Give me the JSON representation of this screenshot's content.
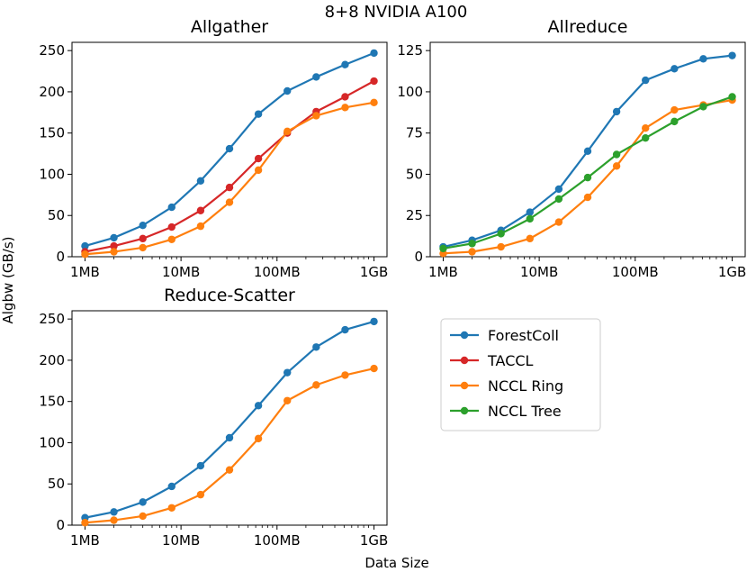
{
  "figure": {
    "title": "8+8 NVIDIA A100",
    "xlabel": "Data Size",
    "ylabel": "Algbw (GB/s)"
  },
  "legend": {
    "placement": "right of bottom-left panel",
    "entries": [
      {
        "name": "ForestColl",
        "color": "#1f77b4"
      },
      {
        "name": "TACCL",
        "color": "#d62728"
      },
      {
        "name": "NCCL Ring",
        "color": "#ff7f0e"
      },
      {
        "name": "NCCL Tree",
        "color": "#2ca02c"
      }
    ]
  },
  "chart_data": [
    {
      "type": "line",
      "title": "Allgather",
      "x": [
        "1MB",
        "2MB",
        "4MB",
        "8MB",
        "16MB",
        "32MB",
        "64MB",
        "128MB",
        "256MB",
        "512MB",
        "1GB"
      ],
      "xticks": [
        "1MB",
        "10MB",
        "100MB",
        "1GB"
      ],
      "ylim": [
        0,
        260
      ],
      "yticks": [
        0,
        50,
        100,
        150,
        200,
        250
      ],
      "series": [
        {
          "name": "ForestColl",
          "color": "#1f77b4",
          "values": [
            13,
            23,
            38,
            60,
            92,
            131,
            173,
            201,
            218,
            233,
            247
          ]
        },
        {
          "name": "TACCL",
          "color": "#d62728",
          "values": [
            6,
            13,
            22,
            36,
            56,
            84,
            119,
            150,
            176,
            194,
            213
          ]
        },
        {
          "name": "NCCL Ring",
          "color": "#ff7f0e",
          "values": [
            3,
            6,
            11,
            21,
            37,
            66,
            105,
            152,
            171,
            181,
            187
          ]
        }
      ]
    },
    {
      "type": "line",
      "title": "Allreduce",
      "x": [
        "1MB",
        "2MB",
        "4MB",
        "8MB",
        "16MB",
        "32MB",
        "64MB",
        "128MB",
        "256MB",
        "512MB",
        "1GB"
      ],
      "xticks": [
        "1MB",
        "10MB",
        "100MB",
        "1GB"
      ],
      "ylim": [
        0,
        130
      ],
      "yticks": [
        0,
        25,
        50,
        75,
        100,
        125
      ],
      "series": [
        {
          "name": "ForestColl",
          "color": "#1f77b4",
          "values": [
            6,
            10,
            16,
            27,
            41,
            64,
            88,
            107,
            114,
            120,
            122
          ]
        },
        {
          "name": "NCCL Ring",
          "color": "#ff7f0e",
          "values": [
            2,
            3,
            6,
            11,
            21,
            36,
            55,
            78,
            89,
            92,
            95
          ]
        },
        {
          "name": "NCCL Tree",
          "color": "#2ca02c",
          "values": [
            5,
            8,
            14,
            23,
            35,
            48,
            62,
            72,
            82,
            91,
            97
          ]
        }
      ]
    },
    {
      "type": "line",
      "title": "Reduce-Scatter",
      "x": [
        "1MB",
        "2MB",
        "4MB",
        "8MB",
        "16MB",
        "32MB",
        "64MB",
        "128MB",
        "256MB",
        "512MB",
        "1GB"
      ],
      "xticks": [
        "1MB",
        "10MB",
        "100MB",
        "1GB"
      ],
      "ylim": [
        0,
        260
      ],
      "yticks": [
        0,
        50,
        100,
        150,
        200,
        250
      ],
      "series": [
        {
          "name": "ForestColl",
          "color": "#1f77b4",
          "values": [
            9,
            16,
            28,
            47,
            72,
            106,
            145,
            185,
            216,
            237,
            247
          ]
        },
        {
          "name": "NCCL Ring",
          "color": "#ff7f0e",
          "values": [
            3,
            6,
            11,
            21,
            37,
            67,
            105,
            151,
            170,
            182,
            190
          ]
        }
      ]
    }
  ]
}
